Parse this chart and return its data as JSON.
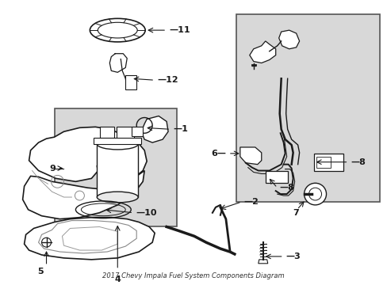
{
  "title": "2017 Chevy Impala Fuel System Components Diagram",
  "bg_color": "#ffffff",
  "line_color": "#1a1a1a",
  "label_color": "#000000",
  "fig_width": 4.89,
  "fig_height": 3.6,
  "dpi": 100,
  "gray_bg": "#d8d8d8",
  "gray_bg2": "#d0d0d0"
}
